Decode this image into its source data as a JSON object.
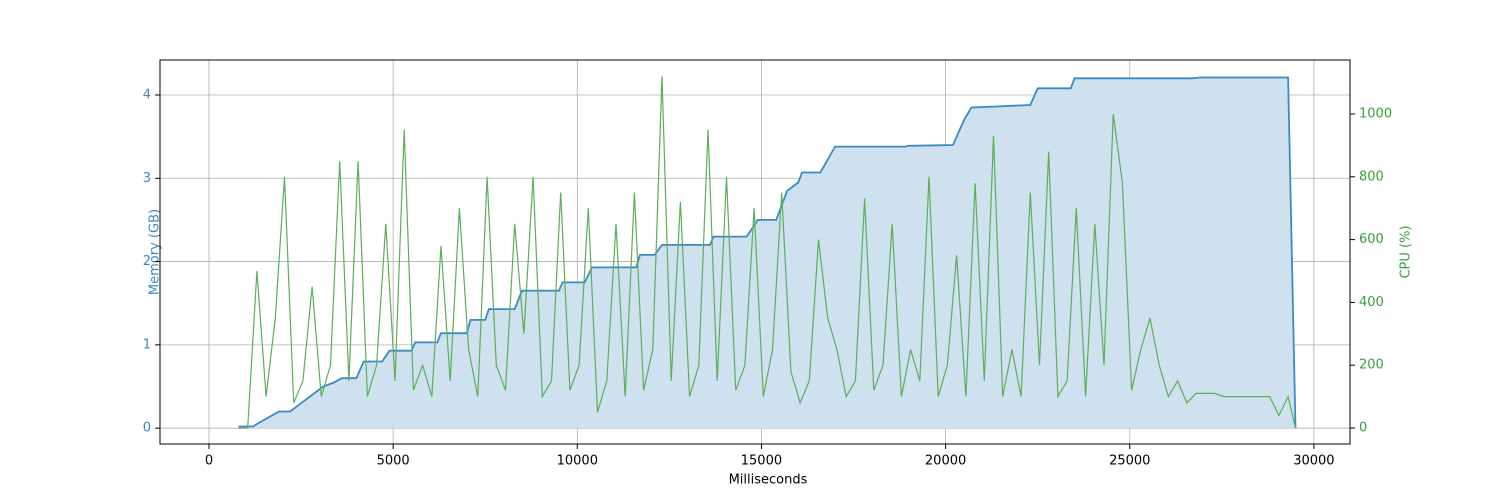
{
  "chart_data": {
    "type": "line",
    "xlabel": "Milliseconds",
    "ylabel": "Memory (GB)",
    "y2label": "CPU (%)",
    "xlim": [
      -1330,
      30980
    ],
    "xticks": [
      0,
      5000,
      10000,
      15000,
      20000,
      25000,
      30000
    ],
    "ylim": [
      -0.19,
      4.42
    ],
    "yticks": [
      0,
      1,
      2,
      3,
      4
    ],
    "y2lim": [
      -51,
      1172
    ],
    "y2ticks": [
      0,
      200,
      400,
      600,
      800,
      1000
    ],
    "grid": true,
    "series": [
      {
        "color": "#3b8bc2",
        "fill": "#cfe0ef",
        "x": [
          800,
          1200,
          1300,
          1700,
          1900,
          2200,
          2500,
          2800,
          3100,
          3400,
          3600,
          4000,
          4200,
          4700,
          4900,
          5500,
          5600,
          6200,
          6300,
          7000,
          7100,
          7500,
          7600,
          8300,
          8500,
          9500,
          9600,
          10200,
          10400,
          11600,
          11700,
          12100,
          12300,
          13600,
          13700,
          14600,
          14900,
          15400,
          15700,
          16000,
          16100,
          16600,
          17000,
          18900,
          19000,
          20200,
          20500,
          20700,
          21300,
          22300,
          22500,
          23400,
          23500,
          26700,
          26900,
          29300,
          29500
        ],
        "values": [
          0.02,
          0.02,
          0.05,
          0.15,
          0.2,
          0.2,
          0.3,
          0.4,
          0.5,
          0.55,
          0.6,
          0.6,
          0.8,
          0.8,
          0.93,
          0.93,
          1.03,
          1.03,
          1.14,
          1.14,
          1.3,
          1.3,
          1.43,
          1.43,
          1.65,
          1.65,
          1.75,
          1.75,
          1.93,
          1.93,
          2.08,
          2.08,
          2.2,
          2.2,
          2.3,
          2.3,
          2.5,
          2.5,
          2.85,
          2.95,
          3.07,
          3.07,
          3.38,
          3.38,
          3.39,
          3.4,
          3.7,
          3.85,
          3.86,
          3.88,
          4.08,
          4.08,
          4.2,
          4.2,
          4.21,
          4.21,
          0
        ]
      },
      {
        "color": "#5aaf5a",
        "axis": "y2",
        "x": [
          800,
          1050,
          1300,
          1550,
          1800,
          2050,
          2300,
          2550,
          2800,
          3050,
          3300,
          3550,
          3800,
          4050,
          4300,
          4550,
          4800,
          5050,
          5300,
          5550,
          5800,
          6050,
          6300,
          6550,
          6800,
          7050,
          7300,
          7550,
          7800,
          8050,
          8300,
          8550,
          8800,
          9050,
          9300,
          9550,
          9800,
          10050,
          10300,
          10550,
          10800,
          11050,
          11300,
          11550,
          11800,
          12050,
          12300,
          12550,
          12800,
          13050,
          13300,
          13550,
          13800,
          14050,
          14300,
          14550,
          14800,
          15050,
          15300,
          15550,
          15800,
          16050,
          16300,
          16550,
          16800,
          17050,
          17300,
          17550,
          17800,
          18050,
          18300,
          18550,
          18800,
          19050,
          19300,
          19550,
          19800,
          20050,
          20300,
          20550,
          20800,
          21050,
          21300,
          21550,
          21800,
          22050,
          22300,
          22550,
          22800,
          23050,
          23300,
          23550,
          23800,
          24050,
          24300,
          24550,
          24800,
          25050,
          25300,
          25550,
          25800,
          26050,
          26300,
          26550,
          26800,
          27050,
          27300,
          27550,
          27800,
          28050,
          28300,
          28550,
          28800,
          29050,
          29300,
          29500
        ],
        "values": [
          0,
          0,
          500,
          100,
          350,
          800,
          80,
          150,
          450,
          100,
          200,
          850,
          150,
          850,
          100,
          200,
          650,
          150,
          950,
          120,
          200,
          100,
          580,
          150,
          700,
          250,
          100,
          800,
          200,
          120,
          650,
          300,
          800,
          100,
          150,
          750,
          120,
          200,
          700,
          50,
          150,
          650,
          100,
          750,
          120,
          250,
          1120,
          150,
          720,
          100,
          200,
          950,
          150,
          800,
          120,
          200,
          700,
          100,
          250,
          750,
          180,
          80,
          150,
          600,
          350,
          250,
          100,
          150,
          730,
          120,
          200,
          650,
          100,
          250,
          150,
          800,
          100,
          200,
          550,
          100,
          780,
          150,
          930,
          100,
          250,
          100,
          750,
          200,
          880,
          100,
          150,
          700,
          100,
          650,
          200,
          1000,
          780,
          120,
          250,
          350,
          200,
          100,
          150,
          80,
          110,
          110,
          110,
          100,
          100,
          100,
          100,
          100,
          100,
          40,
          100,
          0
        ]
      }
    ]
  }
}
